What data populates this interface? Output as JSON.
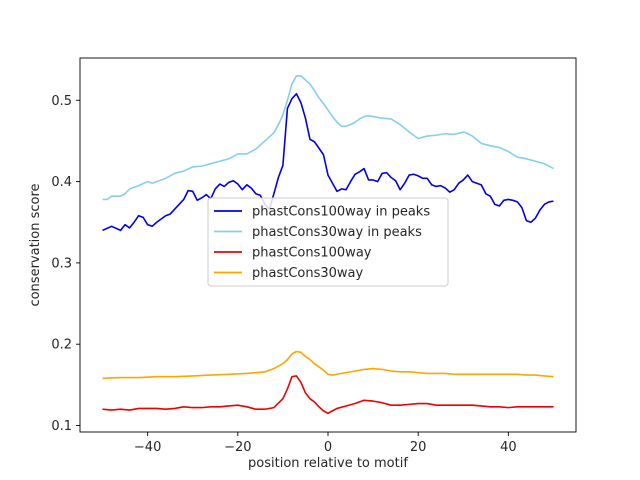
{
  "chart_data": {
    "type": "line",
    "title": "",
    "xlabel": "position relative to motif",
    "ylabel": "conservation score",
    "xlim": [
      -55,
      55
    ],
    "ylim": [
      0.092,
      0.552
    ],
    "xticks": [
      -40,
      -20,
      0,
      20,
      40
    ],
    "xtick_labels": [
      "−40",
      "−20",
      "0",
      "20",
      "40"
    ],
    "yticks": [
      0.1,
      0.2,
      0.3,
      0.4,
      0.5
    ],
    "ytick_labels": [
      "0.1",
      "0.2",
      "0.3",
      "0.4",
      "0.5"
    ],
    "legend_position": "center",
    "colors": {
      "phastCons100way in peaks": "#0000ee",
      "phastCons30way in peaks": "#87ceeb",
      "phastCons100way": "#ee0000",
      "phastCons30way": "#ffa500"
    },
    "series": [
      {
        "name": "phastCons100way in peaks",
        "x": [
          -50,
          -48,
          -46,
          -45,
          -44,
          -43,
          -42,
          -41,
          -40,
          -39,
          -38,
          -36,
          -35,
          -33,
          -32,
          -31,
          -30,
          -29,
          -28,
          -27,
          -26,
          -25,
          -24,
          -23,
          -22,
          -21,
          -20,
          -19,
          -18,
          -17,
          -16,
          -15,
          -14,
          -13,
          -12,
          -11,
          -10,
          -9,
          -8,
          -7,
          -6,
          -5,
          -4,
          -3,
          -2,
          -1,
          0,
          1,
          2,
          3,
          4,
          5,
          6,
          7,
          8,
          9,
          10,
          11,
          12,
          13,
          14,
          15,
          16,
          17,
          18,
          19,
          20,
          21,
          22,
          23,
          24,
          25,
          26,
          27,
          28,
          29,
          30,
          31,
          32,
          33,
          34,
          35,
          36,
          37,
          38,
          39,
          40,
          41,
          42,
          43,
          44,
          45,
          46,
          47,
          48,
          49,
          50
        ],
        "y": [
          0.34,
          0.345,
          0.34,
          0.347,
          0.343,
          0.35,
          0.358,
          0.356,
          0.347,
          0.345,
          0.35,
          0.358,
          0.36,
          0.372,
          0.378,
          0.389,
          0.388,
          0.377,
          0.38,
          0.384,
          0.379,
          0.391,
          0.397,
          0.394,
          0.399,
          0.401,
          0.397,
          0.39,
          0.396,
          0.392,
          0.385,
          0.383,
          0.372,
          0.366,
          0.385,
          0.405,
          0.42,
          0.49,
          0.502,
          0.508,
          0.497,
          0.478,
          0.452,
          0.449,
          0.441,
          0.433,
          0.408,
          0.398,
          0.388,
          0.391,
          0.39,
          0.4,
          0.409,
          0.412,
          0.416,
          0.402,
          0.402,
          0.4,
          0.41,
          0.411,
          0.405,
          0.401,
          0.39,
          0.398,
          0.408,
          0.409,
          0.407,
          0.404,
          0.404,
          0.396,
          0.394,
          0.395,
          0.392,
          0.387,
          0.39,
          0.398,
          0.402,
          0.408,
          0.4,
          0.398,
          0.396,
          0.385,
          0.382,
          0.372,
          0.37,
          0.377,
          0.378,
          0.377,
          0.375,
          0.368,
          0.352,
          0.35,
          0.355,
          0.365,
          0.372,
          0.375,
          0.376
        ]
      },
      {
        "name": "phastCons30way in peaks",
        "x": [
          -50,
          -49,
          -48,
          -47,
          -46,
          -45,
          -44,
          -42,
          -40,
          -39,
          -38,
          -36,
          -34,
          -32,
          -30,
          -28,
          -26,
          -24,
          -22,
          -20,
          -18,
          -16,
          -14,
          -12,
          -11,
          -10,
          -9,
          -8,
          -7,
          -6,
          -5,
          -4,
          -3,
          -2,
          -1,
          0,
          1,
          2,
          3,
          4,
          5,
          6,
          7,
          8,
          9,
          10,
          12,
          14,
          16,
          18,
          20,
          22,
          24,
          26,
          28,
          30,
          31,
          32,
          34,
          36,
          38,
          40,
          42,
          44,
          46,
          48,
          50
        ],
        "y": [
          0.378,
          0.378,
          0.382,
          0.382,
          0.382,
          0.385,
          0.391,
          0.395,
          0.4,
          0.398,
          0.4,
          0.404,
          0.41,
          0.413,
          0.418,
          0.419,
          0.422,
          0.425,
          0.428,
          0.434,
          0.434,
          0.44,
          0.45,
          0.46,
          0.47,
          0.482,
          0.5,
          0.52,
          0.53,
          0.53,
          0.525,
          0.52,
          0.512,
          0.503,
          0.496,
          0.488,
          0.48,
          0.473,
          0.468,
          0.468,
          0.47,
          0.473,
          0.477,
          0.48,
          0.481,
          0.48,
          0.478,
          0.477,
          0.47,
          0.461,
          0.453,
          0.456,
          0.457,
          0.459,
          0.458,
          0.461,
          0.459,
          0.456,
          0.447,
          0.444,
          0.442,
          0.437,
          0.43,
          0.428,
          0.425,
          0.422,
          0.416
        ]
      },
      {
        "name": "phastCons100way",
        "x": [
          -50,
          -48,
          -46,
          -44,
          -42,
          -40,
          -38,
          -36,
          -34,
          -32,
          -30,
          -28,
          -26,
          -24,
          -22,
          -20,
          -18,
          -16,
          -14,
          -12,
          -10,
          -9,
          -8,
          -7,
          -6,
          -5,
          -4,
          -3,
          -2,
          -1,
          0,
          1,
          2,
          4,
          6,
          8,
          10,
          12,
          14,
          16,
          18,
          20,
          22,
          24,
          26,
          28,
          30,
          32,
          34,
          36,
          38,
          40,
          42,
          44,
          46,
          48,
          50
        ],
        "y": [
          0.12,
          0.119,
          0.12,
          0.119,
          0.121,
          0.121,
          0.121,
          0.12,
          0.121,
          0.123,
          0.122,
          0.122,
          0.123,
          0.123,
          0.124,
          0.125,
          0.123,
          0.12,
          0.12,
          0.122,
          0.133,
          0.145,
          0.16,
          0.161,
          0.153,
          0.14,
          0.133,
          0.129,
          0.123,
          0.118,
          0.115,
          0.118,
          0.121,
          0.124,
          0.127,
          0.131,
          0.13,
          0.128,
          0.125,
          0.125,
          0.126,
          0.127,
          0.127,
          0.125,
          0.125,
          0.125,
          0.125,
          0.125,
          0.124,
          0.123,
          0.123,
          0.122,
          0.123,
          0.123,
          0.123,
          0.123,
          0.123
        ]
      },
      {
        "name": "phastCons30way",
        "x": [
          -50,
          -46,
          -42,
          -38,
          -34,
          -30,
          -26,
          -22,
          -18,
          -14,
          -12,
          -10,
          -9,
          -8,
          -7,
          -6,
          -5,
          -4,
          -3,
          -2,
          -1,
          0,
          1,
          2,
          4,
          6,
          8,
          10,
          12,
          14,
          16,
          18,
          20,
          22,
          24,
          26,
          28,
          30,
          32,
          34,
          36,
          38,
          40,
          42,
          44,
          46,
          48,
          50
        ],
        "y": [
          0.158,
          0.159,
          0.159,
          0.16,
          0.16,
          0.161,
          0.162,
          0.163,
          0.164,
          0.166,
          0.17,
          0.176,
          0.181,
          0.188,
          0.191,
          0.19,
          0.185,
          0.181,
          0.176,
          0.172,
          0.168,
          0.163,
          0.162,
          0.163,
          0.165,
          0.167,
          0.169,
          0.17,
          0.169,
          0.167,
          0.166,
          0.166,
          0.165,
          0.164,
          0.164,
          0.164,
          0.163,
          0.163,
          0.163,
          0.163,
          0.163,
          0.163,
          0.163,
          0.163,
          0.162,
          0.162,
          0.161,
          0.16
        ]
      }
    ]
  }
}
